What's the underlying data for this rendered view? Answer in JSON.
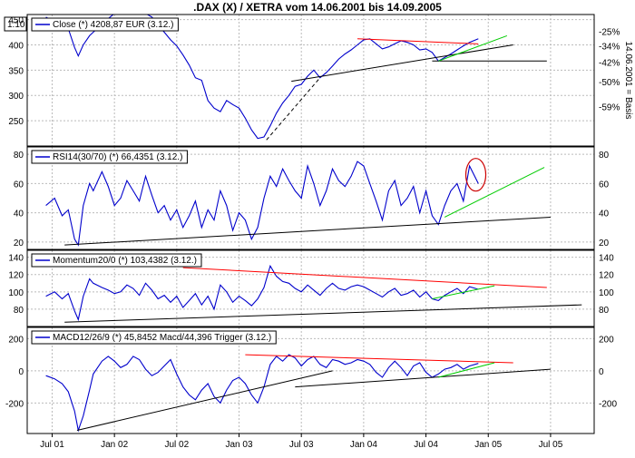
{
  "chart_data": {
    "type": "line",
    "title": ".DAX (X) / XETRA vom 14.06.2001 bis 14.09.2005",
    "corner_label": "1:10",
    "x_ticks": [
      "Jul 01",
      "Jan 02",
      "Jul 02",
      "Jan 03",
      "Jul 03",
      "Jan 04",
      "Jul 04",
      "Jan 05",
      "Jul 05"
    ],
    "colors": {
      "series": "#0000cc",
      "support": "#000000",
      "resistance": "#ff0000",
      "trend_up": "#00cc00",
      "highlight": "#cc0000",
      "grid": "#bbbbbb"
    },
    "panels": [
      {
        "id": "price",
        "legend": "Close (*) 4208,87 EUR (3.12.)",
        "ylim": [
          200,
          460
        ],
        "y_ticks_left": [
          "450",
          "400",
          "350",
          "300",
          "250"
        ],
        "y_ticks_left_values": [
          450,
          400,
          350,
          300,
          250
        ],
        "y_ticks_right": [
          "-25%",
          "-34%",
          "-42%",
          "-50%",
          "-59%"
        ],
        "y_ticks_right_values": [
          427,
          398,
          366,
          327,
          278
        ],
        "right_axis_label": "14.06.2001 = Basis",
        "x": [
          2001.45,
          2001.52,
          2001.58,
          2001.63,
          2001.68,
          2001.71,
          2001.75,
          2001.8,
          2001.83,
          2001.9,
          2001.95,
          2002.0,
          2002.05,
          2002.1,
          2002.15,
          2002.2,
          2002.25,
          2002.3,
          2002.35,
          2002.4,
          2002.45,
          2002.5,
          2002.55,
          2002.6,
          2002.65,
          2002.7,
          2002.75,
          2002.8,
          2002.85,
          2002.9,
          2002.95,
          2003.0,
          2003.05,
          2003.1,
          2003.15,
          2003.2,
          2003.25,
          2003.3,
          2003.35,
          2003.4,
          2003.45,
          2003.5,
          2003.55,
          2003.6,
          2003.65,
          2003.7,
          2003.75,
          2003.8,
          2003.85,
          2003.9,
          2003.95,
          2004.0,
          2004.05,
          2004.1,
          2004.15,
          2004.2,
          2004.25,
          2004.3,
          2004.35,
          2004.4,
          2004.45,
          2004.5,
          2004.55,
          2004.6,
          2004.65,
          2004.7,
          2004.75,
          2004.8,
          2004.85,
          2004.92
        ],
        "values": [
          455,
          445,
          438,
          432,
          395,
          378,
          400,
          418,
          425,
          440,
          452,
          462,
          468,
          465,
          470,
          465,
          462,
          455,
          440,
          425,
          410,
          398,
          380,
          360,
          335,
          330,
          290,
          275,
          268,
          290,
          282,
          275,
          255,
          232,
          215,
          218,
          240,
          265,
          285,
          300,
          318,
          322,
          338,
          350,
          335,
          345,
          358,
          372,
          382,
          390,
          400,
          410,
          412,
          402,
          392,
          396,
          402,
          408,
          405,
          400,
          390,
          392,
          385,
          368,
          375,
          382,
          390,
          398,
          405,
          412
        ],
        "trendlines": [
          {
            "color": "#000000",
            "dash": false,
            "points": [
              [
                2003.42,
                328
              ],
              [
                2005.2,
                400
              ]
            ]
          },
          {
            "color": "#000000",
            "dash": true,
            "points": [
              [
                2003.22,
                212
              ],
              [
                2003.65,
                335
              ]
            ]
          },
          {
            "color": "#000000",
            "dash": false,
            "points": [
              [
                2004.55,
                368
              ],
              [
                2005.47,
                368
              ]
            ]
          },
          {
            "color": "#ff0000",
            "dash": false,
            "points": [
              [
                2003.95,
                412
              ],
              [
                2004.92,
                402
              ]
            ]
          },
          {
            "color": "#00cc00",
            "dash": false,
            "points": [
              [
                2004.6,
                368
              ],
              [
                2005.15,
                418
              ]
            ]
          }
        ]
      },
      {
        "id": "rsi",
        "legend": "RSI14(30/70) (*) 66,4351 (3.12.)",
        "ylim": [
          15,
          85
        ],
        "y_ticks_left": [
          "80",
          "60",
          "40",
          "20"
        ],
        "y_ticks_left_values": [
          80,
          60,
          40,
          20
        ],
        "y_ticks_right": [
          "80",
          "60",
          "40",
          "20"
        ],
        "y_ticks_right_values": [
          80,
          60,
          40,
          20
        ],
        "x": [
          2001.45,
          2001.52,
          2001.58,
          2001.63,
          2001.68,
          2001.71,
          2001.75,
          2001.8,
          2001.83,
          2001.9,
          2001.95,
          2002.0,
          2002.05,
          2002.1,
          2002.15,
          2002.2,
          2002.25,
          2002.3,
          2002.35,
          2002.4,
          2002.45,
          2002.5,
          2002.55,
          2002.6,
          2002.65,
          2002.7,
          2002.75,
          2002.8,
          2002.85,
          2002.9,
          2002.95,
          2003.0,
          2003.05,
          2003.1,
          2003.15,
          2003.2,
          2003.25,
          2003.3,
          2003.35,
          2003.4,
          2003.45,
          2003.5,
          2003.55,
          2003.6,
          2003.65,
          2003.7,
          2003.75,
          2003.8,
          2003.85,
          2003.9,
          2003.95,
          2004.0,
          2004.05,
          2004.1,
          2004.15,
          2004.2,
          2004.25,
          2004.3,
          2004.35,
          2004.4,
          2004.45,
          2004.5,
          2004.55,
          2004.6,
          2004.65,
          2004.7,
          2004.75,
          2004.8,
          2004.85,
          2004.92
        ],
        "values": [
          45,
          50,
          38,
          42,
          22,
          18,
          45,
          60,
          55,
          68,
          58,
          45,
          50,
          62,
          55,
          48,
          65,
          52,
          40,
          45,
          35,
          42,
          30,
          38,
          48,
          30,
          42,
          35,
          55,
          45,
          28,
          40,
          35,
          22,
          30,
          50,
          65,
          58,
          70,
          62,
          55,
          50,
          72,
          60,
          45,
          55,
          70,
          62,
          58,
          65,
          75,
          72,
          60,
          48,
          35,
          55,
          62,
          45,
          50,
          58,
          40,
          55,
          38,
          32,
          45,
          55,
          60,
          48,
          72,
          60
        ],
        "annotation": {
          "x": 2004.9,
          "y": 66,
          "rx": 11,
          "ry": 18
        },
        "trendlines": [
          {
            "color": "#000000",
            "dash": false,
            "points": [
              [
                2001.6,
                18
              ],
              [
                2005.5,
                37
              ]
            ]
          },
          {
            "color": "#00cc00",
            "dash": false,
            "points": [
              [
                2004.65,
                37
              ],
              [
                2005.45,
                71
              ]
            ]
          }
        ]
      },
      {
        "id": "momentum",
        "legend": "Momentum20/0 (*) 103,4382 (3.12.)",
        "ylim": [
          60,
          148
        ],
        "y_ticks_left": [
          "140",
          "120",
          "100",
          "80"
        ],
        "y_ticks_left_values": [
          140,
          120,
          100,
          80
        ],
        "y_ticks_right": [
          "140",
          "120",
          "100",
          "80"
        ],
        "y_ticks_right_values": [
          140,
          120,
          100,
          80
        ],
        "x": [
          2001.45,
          2001.52,
          2001.58,
          2001.63,
          2001.68,
          2001.71,
          2001.75,
          2001.8,
          2001.83,
          2001.9,
          2001.95,
          2002.0,
          2002.05,
          2002.1,
          2002.15,
          2002.2,
          2002.25,
          2002.3,
          2002.35,
          2002.4,
          2002.45,
          2002.5,
          2002.55,
          2002.6,
          2002.65,
          2002.7,
          2002.75,
          2002.8,
          2002.85,
          2002.9,
          2002.95,
          2003.0,
          2003.05,
          2003.1,
          2003.15,
          2003.2,
          2003.25,
          2003.3,
          2003.35,
          2003.4,
          2003.45,
          2003.5,
          2003.55,
          2003.6,
          2003.65,
          2003.7,
          2003.75,
          2003.8,
          2003.85,
          2003.9,
          2003.95,
          2004.0,
          2004.05,
          2004.1,
          2004.15,
          2004.2,
          2004.25,
          2004.3,
          2004.35,
          2004.4,
          2004.45,
          2004.5,
          2004.55,
          2004.6,
          2004.65,
          2004.7,
          2004.75,
          2004.8,
          2004.85,
          2004.92
        ],
        "values": [
          95,
          100,
          92,
          98,
          78,
          68,
          95,
          115,
          110,
          105,
          102,
          98,
          100,
          108,
          104,
          96,
          110,
          102,
          92,
          96,
          88,
          95,
          82,
          90,
          98,
          85,
          95,
          80,
          108,
          100,
          88,
          95,
          90,
          84,
          92,
          105,
          130,
          118,
          112,
          110,
          104,
          100,
          108,
          102,
          96,
          104,
          110,
          104,
          102,
          106,
          108,
          106,
          102,
          98,
          94,
          100,
          104,
          96,
          98,
          102,
          94,
          100,
          92,
          90,
          96,
          100,
          104,
          98,
          106,
          103
        ],
        "trendlines": [
          {
            "color": "#ff0000",
            "dash": false,
            "points": [
              [
                2002.55,
                128
              ],
              [
                2005.47,
                105
              ]
            ]
          },
          {
            "color": "#000000",
            "dash": false,
            "points": [
              [
                2001.6,
                65
              ],
              [
                2005.75,
                85
              ]
            ]
          },
          {
            "color": "#00cc00",
            "dash": false,
            "points": [
              [
                2004.55,
                92
              ],
              [
                2005.05,
                107
              ]
            ]
          }
        ]
      },
      {
        "id": "macd",
        "legend": "MACD12/26/9 (*) 45,8452 Macd/44,396 Trigger (3.12.)",
        "ylim": [
          -390,
          270
        ],
        "y_ticks_left": [
          "200",
          "0",
          "-200"
        ],
        "y_ticks_left_values": [
          200,
          0,
          -200
        ],
        "y_ticks_right": [
          "200",
          "0",
          "-200"
        ],
        "y_ticks_right_values": [
          200,
          0,
          -200
        ],
        "x": [
          2001.45,
          2001.52,
          2001.58,
          2001.63,
          2001.68,
          2001.71,
          2001.75,
          2001.8,
          2001.83,
          2001.9,
          2001.95,
          2002.0,
          2002.05,
          2002.1,
          2002.15,
          2002.2,
          2002.25,
          2002.3,
          2002.35,
          2002.4,
          2002.45,
          2002.5,
          2002.55,
          2002.6,
          2002.65,
          2002.7,
          2002.75,
          2002.8,
          2002.85,
          2002.9,
          2002.95,
          2003.0,
          2003.05,
          2003.1,
          2003.15,
          2003.2,
          2003.25,
          2003.3,
          2003.35,
          2003.4,
          2003.45,
          2003.5,
          2003.55,
          2003.6,
          2003.65,
          2003.7,
          2003.75,
          2003.8,
          2003.85,
          2003.9,
          2003.95,
          2004.0,
          2004.05,
          2004.1,
          2004.15,
          2004.2,
          2004.25,
          2004.3,
          2004.35,
          2004.4,
          2004.45,
          2004.5,
          2004.55,
          2004.6,
          2004.65,
          2004.7,
          2004.75,
          2004.8,
          2004.85,
          2004.92
        ],
        "values": [
          -30,
          -50,
          -80,
          -130,
          -250,
          -370,
          -280,
          -120,
          -20,
          60,
          90,
          60,
          20,
          40,
          90,
          70,
          10,
          -30,
          -10,
          30,
          70,
          -20,
          -100,
          -150,
          -180,
          -120,
          -80,
          -160,
          -200,
          -120,
          -60,
          -40,
          -80,
          -150,
          -200,
          -100,
          40,
          90,
          60,
          100,
          80,
          30,
          70,
          90,
          40,
          20,
          70,
          60,
          40,
          50,
          70,
          60,
          40,
          -10,
          -40,
          20,
          60,
          20,
          -30,
          30,
          50,
          -10,
          -40,
          -20,
          10,
          20,
          40,
          10,
          30,
          46
        ],
        "trendlines": [
          {
            "color": "#000000",
            "dash": false,
            "points": [
              [
                2001.7,
                -370
              ],
              [
                2003.75,
                0
              ]
            ]
          },
          {
            "color": "#000000",
            "dash": false,
            "points": [
              [
                2003.45,
                -100
              ],
              [
                2005.5,
                10
              ]
            ]
          },
          {
            "color": "#ff0000",
            "dash": false,
            "points": [
              [
                2003.05,
                100
              ],
              [
                2005.2,
                50
              ]
            ]
          },
          {
            "color": "#00cc00",
            "dash": false,
            "points": [
              [
                2004.6,
                -40
              ],
              [
                2005.05,
                50
              ]
            ]
          }
        ]
      }
    ]
  }
}
